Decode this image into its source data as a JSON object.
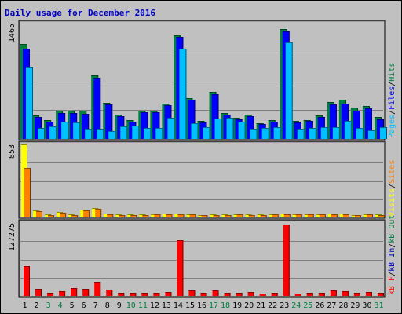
{
  "chart_data": {
    "type": "bar",
    "title": "Daily usage for December 2016",
    "categories": [
      "1",
      "2",
      "3",
      "4",
      "5",
      "6",
      "7",
      "8",
      "9",
      "10",
      "11",
      "12",
      "13",
      "14",
      "15",
      "16",
      "17",
      "18",
      "19",
      "20",
      "21",
      "22",
      "23",
      "24",
      "25",
      "26",
      "27",
      "28",
      "29",
      "30",
      "31"
    ],
    "weekend_days": [
      "3",
      "4",
      "10",
      "11",
      "17",
      "18",
      "24",
      "25",
      "31"
    ],
    "panels": [
      {
        "name": "pages-files-hits",
        "ymax_label": "1465",
        "ymax": 1465,
        "side_label": [
          "Pages",
          "/",
          "Files",
          "/",
          "Hits"
        ],
        "series": [
          {
            "name": "Hits",
            "color": "#008040",
            "values": [
              1210,
              300,
              240,
              360,
              360,
              360,
              810,
              460,
              310,
              240,
              360,
              360,
              450,
              1320,
              520,
              230,
              600,
              330,
              270,
              310,
              200,
              240,
              1400,
              230,
              240,
              300,
              470,
              500,
              400,
              420,
              280
            ]
          },
          {
            "name": "Files",
            "color": "#0000ff",
            "values": [
              1150,
              280,
              220,
              330,
              330,
              320,
              780,
              440,
              290,
              220,
              340,
              340,
              430,
              1300,
              500,
              210,
              570,
              310,
              250,
              290,
              190,
              220,
              1370,
              210,
              230,
              280,
              440,
              450,
              360,
              390,
              250
            ]
          },
          {
            "name": "Pages",
            "color": "#00c0ff",
            "values": [
              920,
              140,
              160,
              220,
              210,
              130,
              130,
              100,
              160,
              170,
              140,
              140,
              270,
              1150,
              200,
              150,
              260,
              270,
              220,
              130,
              140,
              150,
              1230,
              130,
              140,
              150,
              150,
              230,
              140,
              110,
              150
            ]
          }
        ]
      },
      {
        "name": "visits-sites",
        "ymax_label": "853",
        "ymax": 853,
        "side_label": [
          "Visits",
          "/",
          "Sites"
        ],
        "series": [
          {
            "name": "Visits",
            "color": "#ffff00",
            "values": [
              853,
              80,
              40,
              60,
              40,
              95,
              110,
              45,
              35,
              35,
              35,
              40,
              45,
              45,
              40,
              30,
              35,
              35,
              40,
              35,
              35,
              40,
              45,
              40,
              40,
              40,
              45,
              45,
              30,
              40,
              35
            ]
          },
          {
            "name": "Sites",
            "color": "#ff8000",
            "values": [
              580,
              70,
              30,
              55,
              30,
              85,
              105,
              40,
              30,
              30,
              30,
              35,
              40,
              40,
              40,
              25,
              30,
              30,
              35,
              30,
              30,
              35,
              40,
              35,
              35,
              35,
              40,
              40,
              25,
              35,
              30
            ]
          }
        ]
      },
      {
        "name": "kbytes",
        "ymax_label": "127275",
        "ymax": 127275,
        "side_label": [
          "kB F",
          "/",
          "kB In",
          "/",
          "kB Out"
        ],
        "series": [
          {
            "name": "kB F",
            "color": "#ff0000",
            "values": [
              52000,
              12000,
              6000,
              8000,
              14000,
              13000,
              24000,
              11000,
              5000,
              5000,
              6000,
              6000,
              7000,
              97000,
              10000,
              5000,
              10000,
              5000,
              6000,
              7000,
              4000,
              6000,
              125000,
              4000,
              5000,
              5000,
              9000,
              8000,
              6000,
              7000,
              5000
            ]
          }
        ]
      }
    ]
  }
}
